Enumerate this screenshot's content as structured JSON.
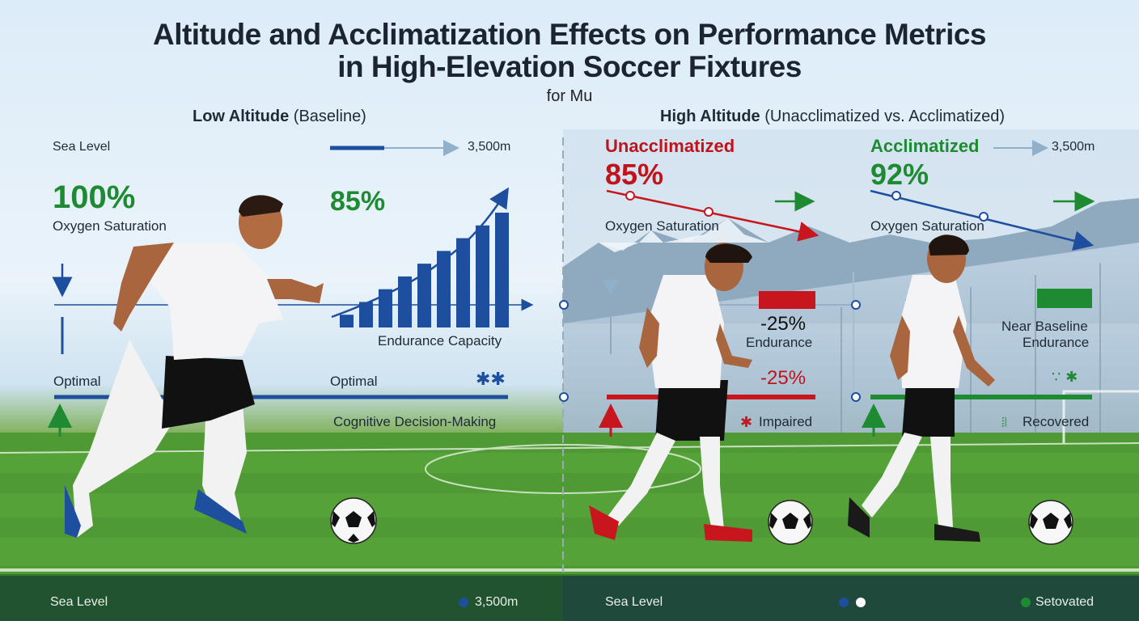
{
  "title_line1": "Altitude and Acclimatization Effects on Performance Metrics",
  "title_line2": "in High-Elevation Soccer Fixtures",
  "subtitle": "for Mu",
  "low": {
    "heading_bold": "Low Altitude",
    "heading_rest": " (Baseline)",
    "sea_level": "Sea Level",
    "altitude_marker": "3,500m",
    "oxygen_value": "100%",
    "oxygen_label": "Oxygen Saturation",
    "endurance_value": "85%",
    "endurance_label": "Endurance Capacity",
    "optimal_left": "Optimal",
    "optimal_right": "Optimal",
    "cognitive_label": "Cognitive Decision-Making",
    "bar_values": [
      1,
      2,
      3,
      4,
      5,
      6,
      7,
      8,
      9
    ]
  },
  "high": {
    "heading_bold": "High Altitude",
    "heading_rest": " (Unacclimatized vs. Acclimatized)",
    "unacc": {
      "label": "Unacclimatized",
      "oxygen_value": "85%",
      "oxygen_label": "Oxygen Saturation",
      "endurance_value": "-25%",
      "endurance_label": "Endurance",
      "cognitive_value": "-25%",
      "cognitive_status": "Impaired",
      "color": "#c8161e"
    },
    "acc": {
      "label": "Acclimatized",
      "altitude_marker": "3,500m",
      "oxygen_value": "92%",
      "oxygen_label": "Oxygen Saturation",
      "endurance_line1": "Near Baseline",
      "endurance_line2": "Endurance",
      "cognitive_status": "Recovered",
      "color": "#1e8a32"
    }
  },
  "footer": {
    "left": "Sea Level",
    "mid": "3,500m",
    "center": "Sea Level",
    "right": "Setovated"
  },
  "colors": {
    "blue": "#1d4f9e",
    "red": "#c8161e",
    "green": "#1e8a32"
  }
}
